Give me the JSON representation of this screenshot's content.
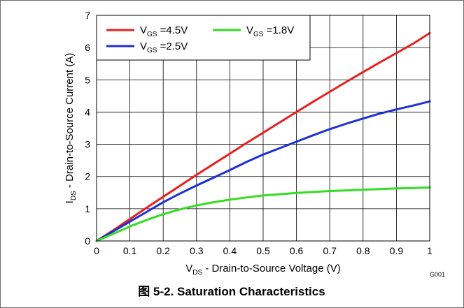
{
  "chart_data": {
    "type": "line",
    "title": "",
    "xlabel": {
      "main": "V",
      "sub": "DS",
      "rest": " - Drain-to-Source Voltage (V)"
    },
    "ylabel": {
      "main": "I",
      "sub": "DS",
      "rest": " - Drain-to-Source Current (A)"
    },
    "xlim": [
      0,
      1
    ],
    "ylim": [
      0,
      7
    ],
    "xticks": [
      "0",
      "0.1",
      "0.2",
      "0.3",
      "0.4",
      "0.5",
      "0.6",
      "0.7",
      "0.8",
      "0.9",
      "1"
    ],
    "yticks": [
      "0",
      "1",
      "2",
      "3",
      "4",
      "5",
      "6",
      "7"
    ],
    "grid": true,
    "legend_position": "top-left",
    "x": [
      0,
      0.05,
      0.1,
      0.15,
      0.2,
      0.25,
      0.3,
      0.35,
      0.4,
      0.45,
      0.5,
      0.55,
      0.6,
      0.65,
      0.7,
      0.75,
      0.8,
      0.85,
      0.9,
      0.95,
      1.0
    ],
    "series": [
      {
        "name": {
          "main": "V",
          "sub": "GS",
          "rest": " =4.5V"
        },
        "color": "#e8201f",
        "values": [
          0,
          0.33,
          0.68,
          1.03,
          1.37,
          1.71,
          2.05,
          2.38,
          2.71,
          3.04,
          3.36,
          3.68,
          4.0,
          4.32,
          4.63,
          4.94,
          5.24,
          5.54,
          5.83,
          6.12,
          6.45
        ]
      },
      {
        "name": {
          "main": "V",
          "sub": "GS",
          "rest": " =2.5V"
        },
        "color": "#1e2fd6",
        "values": [
          0,
          0.3,
          0.6,
          0.9,
          1.2,
          1.47,
          1.72,
          1.96,
          2.2,
          2.45,
          2.68,
          2.88,
          3.08,
          3.28,
          3.47,
          3.64,
          3.8,
          3.95,
          4.08,
          4.2,
          4.33
        ]
      },
      {
        "name": {
          "main": "V",
          "sub": "GS",
          "rest": " =1.8V"
        },
        "color": "#33dd22",
        "values": [
          0,
          0.22,
          0.45,
          0.65,
          0.83,
          0.98,
          1.1,
          1.2,
          1.28,
          1.35,
          1.41,
          1.45,
          1.49,
          1.52,
          1.55,
          1.57,
          1.59,
          1.61,
          1.63,
          1.64,
          1.66
        ]
      }
    ],
    "legend_order": [
      0,
      2,
      1
    ],
    "code_label": "G001",
    "caption": {
      "prefix": "图 5-2. ",
      "text": "Saturation Characteristics"
    }
  }
}
